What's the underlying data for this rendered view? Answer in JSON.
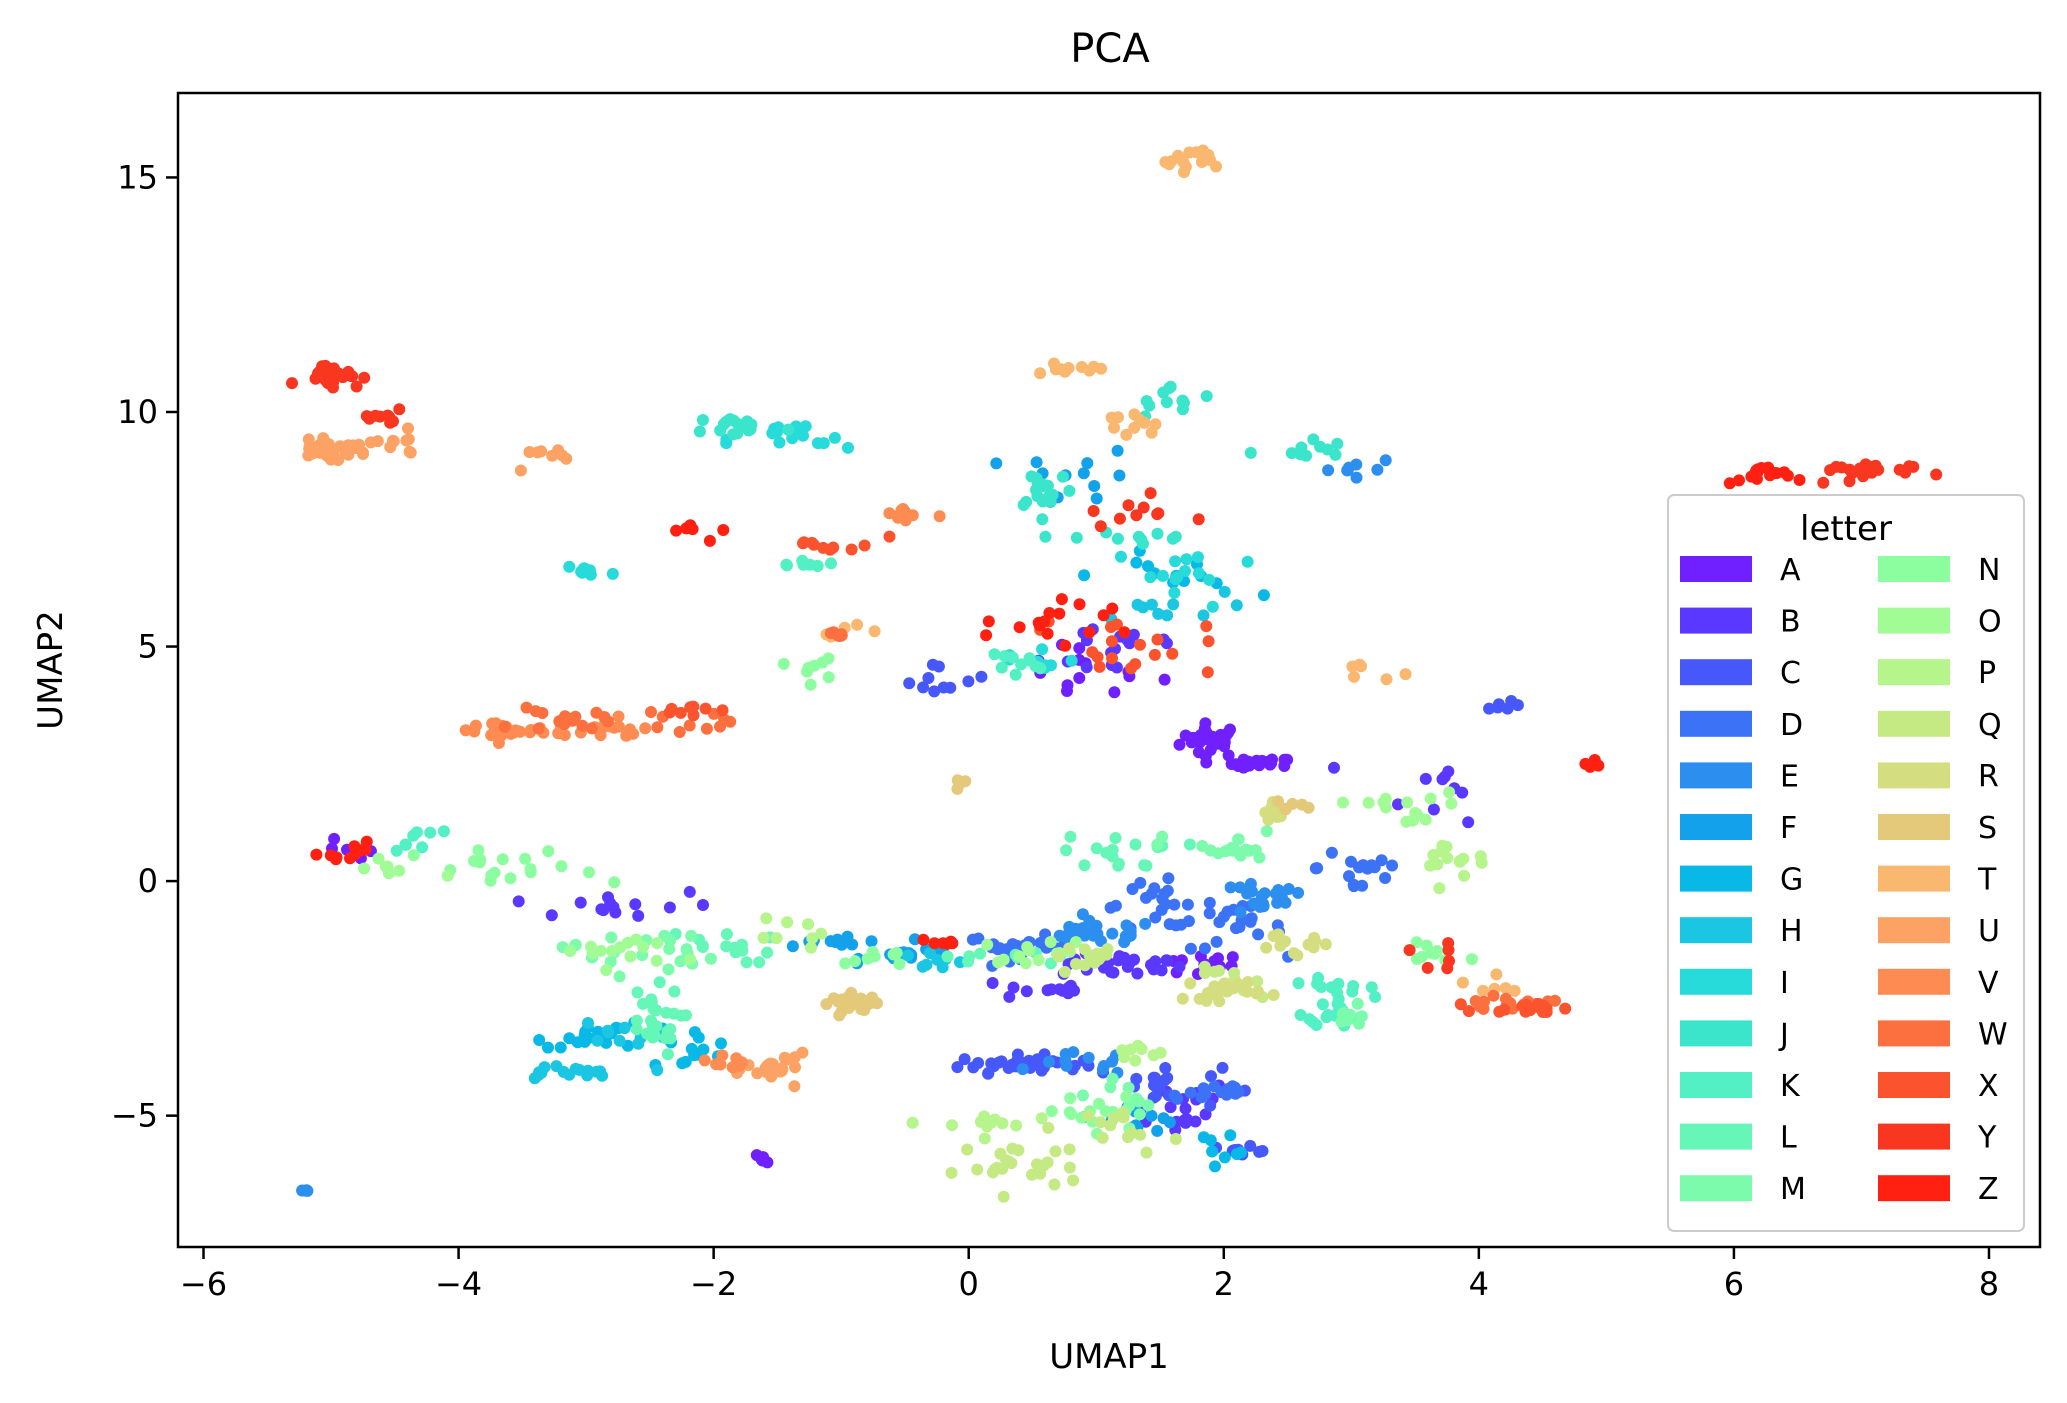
{
  "chart_data": {
    "type": "scatter",
    "title": "PCA",
    "xlabel": "UMAP1",
    "ylabel": "UMAP2",
    "xlim": [
      -6.2,
      8.4
    ],
    "ylim": [
      -7.8,
      16.8
    ],
    "xticks": [
      -6,
      -4,
      -2,
      0,
      2,
      4,
      6,
      8
    ],
    "yticks": [
      -5,
      0,
      5,
      10,
      15
    ],
    "legend": {
      "title": "letter",
      "placement": "lower right",
      "columns": 2
    },
    "series": [
      {
        "name": "A",
        "color": "#7020ff",
        "clusters": [
          [
            1.9,
            3.0,
            0.2,
            0.3,
            28
          ],
          [
            2.3,
            2.5,
            0.2,
            0.1,
            20
          ],
          [
            -1.6,
            -5.9,
            0.05,
            0.08,
            6
          ],
          [
            1.8,
            -1.8,
            0.3,
            0.2,
            14
          ],
          [
            -4.9,
            0.6,
            0.2,
            0.2,
            6
          ],
          [
            0.9,
            4.5,
            0.5,
            0.6,
            12
          ]
        ]
      },
      {
        "name": "B",
        "color": "#5a38ff",
        "clusters": [
          [
            1.2,
            -1.8,
            0.4,
            0.2,
            28
          ],
          [
            0.6,
            -2.3,
            0.3,
            0.2,
            12
          ],
          [
            1.6,
            -4.8,
            0.4,
            0.5,
            18
          ],
          [
            1.2,
            5.0,
            0.5,
            0.6,
            16
          ],
          [
            -2.8,
            -0.5,
            0.7,
            0.3,
            14
          ],
          [
            3.7,
            2.0,
            0.4,
            0.6,
            10
          ]
        ]
      },
      {
        "name": "C",
        "color": "#4658fa",
        "clusters": [
          [
            0.4,
            -3.9,
            0.4,
            0.15,
            36
          ],
          [
            1.5,
            -4.4,
            0.4,
            0.4,
            18
          ],
          [
            2.2,
            -5.7,
            0.15,
            0.1,
            8
          ],
          [
            -0.2,
            4.3,
            0.3,
            0.3,
            10
          ],
          [
            4.2,
            3.7,
            0.1,
            0.1,
            6
          ]
        ]
      },
      {
        "name": "D",
        "color": "#3c72f5",
        "clusters": [
          [
            0.4,
            -1.4,
            0.35,
            0.2,
            26
          ],
          [
            1.5,
            -0.5,
            0.4,
            0.4,
            22
          ],
          [
            2.1,
            -1.0,
            0.3,
            0.4,
            20
          ],
          [
            1.9,
            -4.5,
            0.3,
            0.2,
            14
          ],
          [
            3.1,
            0.3,
            0.3,
            0.6,
            16
          ]
        ]
      },
      {
        "name": "E",
        "color": "#2c8ff0",
        "clusters": [
          [
            1.0,
            -1.1,
            0.4,
            0.2,
            26
          ],
          [
            2.3,
            -0.4,
            0.3,
            0.3,
            20
          ],
          [
            -5.2,
            -6.6,
            0.03,
            0.03,
            4
          ],
          [
            0.9,
            -3.9,
            0.3,
            0.2,
            12
          ],
          [
            3.0,
            8.8,
            0.3,
            0.2,
            8
          ]
        ]
      },
      {
        "name": "F",
        "color": "#13a1ec",
        "clusters": [
          [
            -0.4,
            -1.6,
            0.35,
            0.1,
            16
          ],
          [
            -1.0,
            -1.3,
            0.4,
            0.15,
            14
          ],
          [
            0.9,
            8.6,
            0.4,
            0.5,
            12
          ],
          [
            1.3,
            -5.0,
            0.3,
            0.3,
            12
          ]
        ]
      },
      {
        "name": "G",
        "color": "#08b9e8",
        "clusters": [
          [
            -2.8,
            -3.3,
            0.5,
            0.2,
            22
          ],
          [
            -2.2,
            -3.6,
            0.3,
            0.4,
            12
          ],
          [
            2.0,
            -5.6,
            0.2,
            0.2,
            8
          ],
          [
            1.6,
            6.5,
            0.5,
            0.4,
            12
          ]
        ]
      },
      {
        "name": "H",
        "color": "#1ac6e2",
        "clusters": [
          [
            -3.2,
            -4.1,
            0.4,
            0.15,
            16
          ],
          [
            -2.7,
            -3.2,
            0.3,
            0.2,
            10
          ],
          [
            1.4,
            5.8,
            0.5,
            0.3,
            10
          ],
          [
            -0.3,
            -1.7,
            0.3,
            0.2,
            8
          ]
        ]
      },
      {
        "name": "I",
        "color": "#26dbd9",
        "clusters": [
          [
            -1.4,
            9.4,
            0.4,
            0.3,
            18
          ],
          [
            1.7,
            6.5,
            0.5,
            0.6,
            14
          ],
          [
            -3.0,
            6.6,
            0.2,
            0.2,
            8
          ],
          [
            0.5,
            4.7,
            0.3,
            0.3,
            8
          ]
        ]
      },
      {
        "name": "J",
        "color": "#3be5cc",
        "clusters": [
          [
            -1.8,
            9.7,
            0.3,
            0.2,
            16
          ],
          [
            0.6,
            8.4,
            0.2,
            0.4,
            18
          ],
          [
            1.6,
            10.2,
            0.3,
            0.3,
            12
          ],
          [
            1.3,
            7.3,
            0.4,
            0.3,
            10
          ],
          [
            2.6,
            9.2,
            0.3,
            0.2,
            10
          ]
        ]
      },
      {
        "name": "K",
        "color": "#52f0c4",
        "clusters": [
          [
            2.9,
            -2.5,
            0.2,
            0.5,
            26
          ],
          [
            -1.3,
            6.8,
            0.2,
            0.1,
            8
          ],
          [
            0.3,
            4.6,
            0.3,
            0.3,
            10
          ],
          [
            -4.3,
            0.8,
            0.3,
            0.4,
            8
          ]
        ]
      },
      {
        "name": "L",
        "color": "#66f7b8",
        "clusters": [
          [
            -2.5,
            -3.0,
            0.2,
            0.6,
            26
          ],
          [
            -2.0,
            -1.4,
            0.4,
            0.3,
            14
          ],
          [
            1.2,
            0.6,
            0.4,
            0.3,
            16
          ],
          [
            0.3,
            -1.6,
            0.4,
            0.2,
            10
          ]
        ]
      },
      {
        "name": "M",
        "color": "#7bfbab",
        "clusters": [
          [
            -2.6,
            -1.5,
            0.5,
            0.4,
            20
          ],
          [
            2.0,
            0.7,
            0.4,
            0.3,
            18
          ],
          [
            3.0,
            -3.0,
            0.1,
            0.3,
            8
          ],
          [
            1.3,
            -4.6,
            0.3,
            0.4,
            10
          ]
        ]
      },
      {
        "name": "N",
        "color": "#8dfea0",
        "clusters": [
          [
            -3.6,
            0.2,
            0.6,
            0.4,
            18
          ],
          [
            1.0,
            -5.0,
            0.4,
            0.4,
            14
          ],
          [
            3.7,
            -1.5,
            0.3,
            0.3,
            10
          ],
          [
            -0.7,
            -1.6,
            0.2,
            0.2,
            8
          ],
          [
            -1.3,
            4.5,
            0.2,
            0.2,
            8
          ]
        ]
      },
      {
        "name": "O",
        "color": "#a2fc96",
        "clusters": [
          [
            -2.7,
            -1.5,
            0.4,
            0.3,
            14
          ],
          [
            0.6,
            -1.5,
            0.4,
            0.2,
            14
          ],
          [
            3.4,
            1.6,
            0.4,
            0.3,
            14
          ],
          [
            -4.6,
            0.3,
            0.4,
            0.3,
            8
          ]
        ]
      },
      {
        "name": "P",
        "color": "#b6f48c",
        "clusters": [
          [
            0.1,
            -5.2,
            0.3,
            0.2,
            12
          ],
          [
            3.8,
            0.6,
            0.4,
            0.4,
            14
          ],
          [
            -1.3,
            -1.2,
            0.3,
            0.3,
            8
          ],
          [
            1.3,
            -3.7,
            0.2,
            0.2,
            8
          ]
        ]
      },
      {
        "name": "Q",
        "color": "#c5ea84",
        "clusters": [
          [
            0.4,
            -6.1,
            0.4,
            0.4,
            24
          ],
          [
            1.0,
            -1.6,
            0.3,
            0.2,
            14
          ],
          [
            2.1,
            -2.2,
            0.3,
            0.3,
            10
          ],
          [
            1.3,
            -5.3,
            0.3,
            0.4,
            14
          ]
        ]
      },
      {
        "name": "R",
        "color": "#d4de80",
        "clusters": [
          [
            2.0,
            -2.3,
            0.25,
            0.2,
            22
          ],
          [
            2.5,
            -1.4,
            0.3,
            0.2,
            12
          ],
          [
            2.4,
            1.5,
            0.1,
            0.2,
            8
          ]
        ]
      },
      {
        "name": "S",
        "color": "#e4c97a",
        "clusters": [
          [
            -0.9,
            -2.6,
            0.15,
            0.15,
            34
          ],
          [
            2.5,
            1.6,
            0.1,
            0.2,
            6
          ],
          [
            -0.1,
            2.1,
            0.1,
            0.1,
            4
          ]
        ]
      },
      {
        "name": "T",
        "color": "#fab770",
        "clusters": [
          [
            1.7,
            15.4,
            0.2,
            0.2,
            16
          ],
          [
            0.8,
            10.9,
            0.2,
            0.1,
            12
          ],
          [
            -0.9,
            5.3,
            0.2,
            0.2,
            6
          ],
          [
            3.1,
            4.5,
            0.2,
            0.2,
            6
          ],
          [
            1.3,
            9.7,
            0.3,
            0.3,
            10
          ],
          [
            4.0,
            -2.3,
            0.2,
            0.2,
            6
          ]
        ]
      },
      {
        "name": "U",
        "color": "#fca264",
        "clusters": [
          [
            -5.0,
            9.2,
            0.25,
            0.15,
            38
          ],
          [
            -1.5,
            -4.0,
            0.2,
            0.25,
            24
          ],
          [
            -4.5,
            9.3,
            0.2,
            0.2,
            10
          ],
          [
            -3.3,
            9.0,
            0.3,
            0.3,
            8
          ]
        ]
      },
      {
        "name": "V",
        "color": "#fd8b52",
        "clusters": [
          [
            -3.6,
            3.2,
            0.4,
            0.2,
            26
          ],
          [
            -2.8,
            3.2,
            0.3,
            0.2,
            12
          ],
          [
            -0.5,
            7.8,
            0.2,
            0.2,
            10
          ],
          [
            -1.8,
            -3.8,
            0.2,
            0.2,
            8
          ]
        ]
      },
      {
        "name": "W",
        "color": "#fc7040",
        "clusters": [
          [
            -3.2,
            3.4,
            0.3,
            0.2,
            16
          ],
          [
            4.2,
            -2.6,
            0.3,
            0.1,
            16
          ],
          [
            -2.2,
            3.3,
            0.4,
            0.3,
            10
          ],
          [
            -1.0,
            5.3,
            0.1,
            0.1,
            6
          ]
        ]
      },
      {
        "name": "X",
        "color": "#fa532e",
        "clusters": [
          [
            4.4,
            -2.7,
            0.3,
            0.1,
            16
          ],
          [
            1.2,
            5.0,
            0.6,
            0.5,
            18
          ],
          [
            -1.0,
            7.2,
            0.3,
            0.2,
            10
          ],
          [
            -2.2,
            3.7,
            0.3,
            0.2,
            8
          ]
        ]
      },
      {
        "name": "Y",
        "color": "#f9361f",
        "clusters": [
          [
            -5.0,
            10.8,
            0.2,
            0.2,
            24
          ],
          [
            6.9,
            8.7,
            0.4,
            0.2,
            22
          ],
          [
            -4.6,
            9.9,
            0.2,
            0.2,
            10
          ],
          [
            1.3,
            7.9,
            0.3,
            0.3,
            10
          ],
          [
            3.6,
            -1.7,
            0.2,
            0.3,
            6
          ]
        ]
      },
      {
        "name": "Z",
        "color": "#ff2012",
        "clusters": [
          [
            6.2,
            8.6,
            0.2,
            0.2,
            16
          ],
          [
            -4.9,
            0.6,
            0.15,
            0.2,
            10
          ],
          [
            0.7,
            5.4,
            0.5,
            0.5,
            16
          ],
          [
            -0.2,
            -1.3,
            0.1,
            0.05,
            6
          ],
          [
            4.9,
            2.5,
            0.1,
            0.1,
            4
          ],
          [
            -2.3,
            7.5,
            0.3,
            0.3,
            6
          ]
        ]
      }
    ]
  }
}
